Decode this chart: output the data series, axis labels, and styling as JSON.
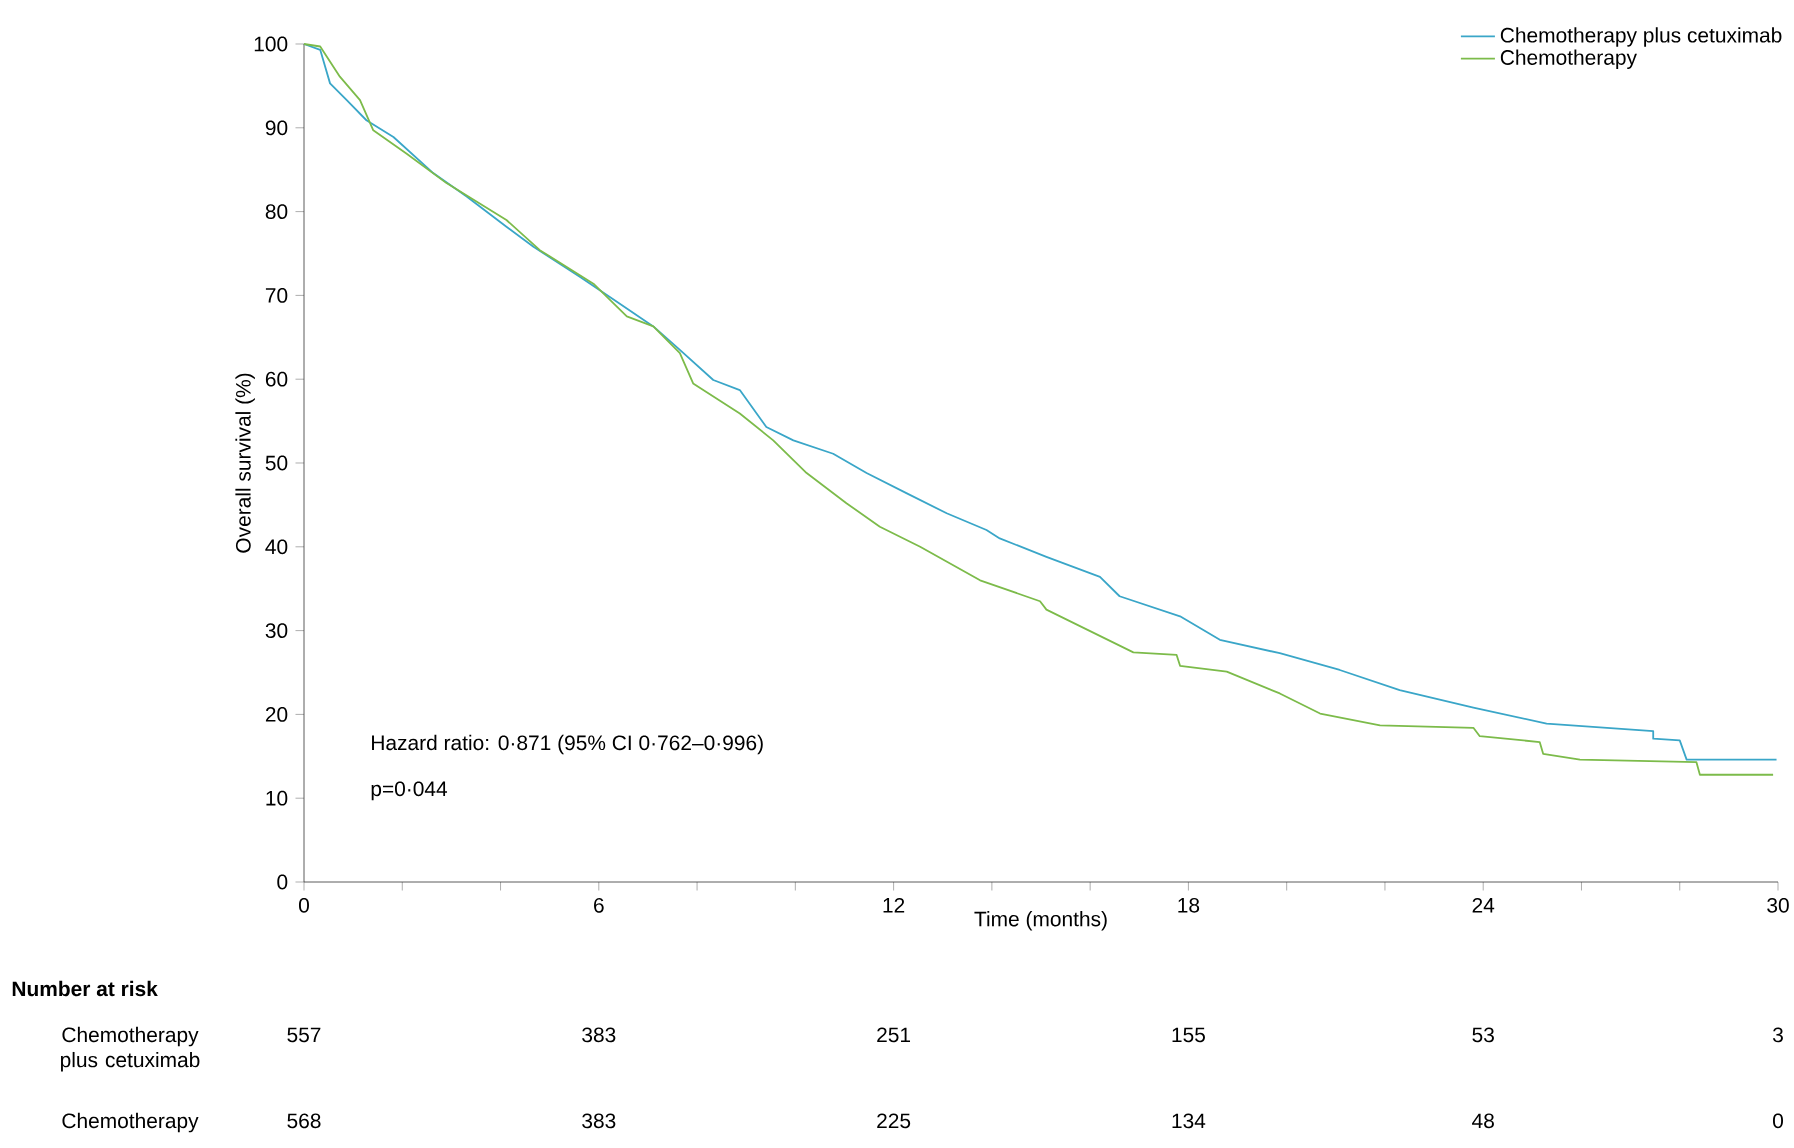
{
  "chart_data": {
    "type": "line",
    "xlabel": "Time (months)",
    "ylabel": "Overall survival (%)",
    "xlim": [
      0,
      30
    ],
    "ylim": [
      0,
      100
    ],
    "xticks": [
      0,
      {
        "value": 2,
        "label": null
      },
      {
        "value": 4,
        "label": null
      },
      6,
      {
        "value": 8,
        "label": null
      },
      {
        "value": 10,
        "label": null
      },
      12,
      {
        "value": 14,
        "label": null
      },
      {
        "value": 16,
        "label": null
      },
      18,
      {
        "value": 20,
        "label": null
      },
      {
        "value": 22,
        "label": null
      },
      24,
      {
        "value": 26,
        "label": null
      },
      {
        "value": 28,
        "label": null
      },
      30
    ],
    "yticks": [
      0,
      10,
      20,
      30,
      40,
      50,
      60,
      70,
      80,
      90,
      100
    ],
    "grid": false,
    "legend": "top right",
    "marker": "none",
    "line_style": "solid",
    "series": [
      {
        "name": "Chemotherapy plus cetuximab",
        "color": "#3aa6c8",
        "x": [
          0,
          0.33,
          0.53,
          0.87,
          1.27,
          1.82,
          2.63,
          3.31,
          4.12,
          4.67,
          5.62,
          6.3,
          7.11,
          7.65,
          8.33,
          8.87,
          9.41,
          9.96,
          10.77,
          11.45,
          12.26,
          13.08,
          13.89,
          14.16,
          15.11,
          16.2,
          16.6,
          17.83,
          18.64,
          19.86,
          21.08,
          22.3,
          23.8,
          25.29,
          27.46,
          27.46,
          28.0,
          28.14,
          29.97
        ],
        "values": [
          100,
          99.3,
          95.3,
          93.3,
          90.9,
          88.9,
          84.6,
          81.8,
          78.2,
          75.8,
          72.2,
          69.5,
          66.3,
          63.5,
          59.9,
          58.7,
          54.3,
          52.7,
          51.1,
          48.8,
          46.4,
          44.0,
          42.0,
          41.0,
          38.8,
          36.4,
          34.1,
          31.7,
          28.9,
          27.3,
          25.3,
          22.9,
          20.8,
          18.9,
          18.0,
          17.1,
          16.9,
          14.6,
          14.6
        ]
      },
      {
        "name": "Chemotherapy",
        "color": "#7cbb4a",
        "x": [
          0,
          0.33,
          0.73,
          1.14,
          1.41,
          2.09,
          2.9,
          4.12,
          4.8,
          5.89,
          6.57,
          7.11,
          7.65,
          7.92,
          8.87,
          9.55,
          10.23,
          11.04,
          11.72,
          12.54,
          13.76,
          14.98,
          15.11,
          16.88,
          17.76,
          17.83,
          18.78,
          19.86,
          20.68,
          21.9,
          23.8,
          23.93,
          25.15,
          25.22,
          25.97,
          28.34,
          28.41,
          29.9
        ],
        "values": [
          100,
          99.7,
          96.1,
          93.3,
          89.7,
          86.9,
          83.4,
          79.0,
          75.4,
          71.4,
          67.5,
          66.3,
          63.1,
          59.5,
          55.9,
          52.7,
          48.8,
          45.2,
          42.4,
          40.0,
          36.0,
          33.5,
          32.5,
          27.4,
          27.1,
          25.8,
          25.1,
          22.5,
          20.1,
          18.7,
          18.4,
          17.4,
          16.7,
          15.3,
          14.6,
          14.3,
          12.8,
          12.8
        ]
      }
    ],
    "annotations": [
      "Hazard ratio: 0·871 (95% CI 0·762–0·996)",
      "p=0·044",
      "**Number at risk**",
      "Chemotherapy plus cetuximab",
      "557",
      "383",
      "251",
      "155",
      "53",
      "3",
      "Chemotherapy",
      "568",
      "383",
      "225",
      "134",
      "48",
      "0"
    ]
  }
}
